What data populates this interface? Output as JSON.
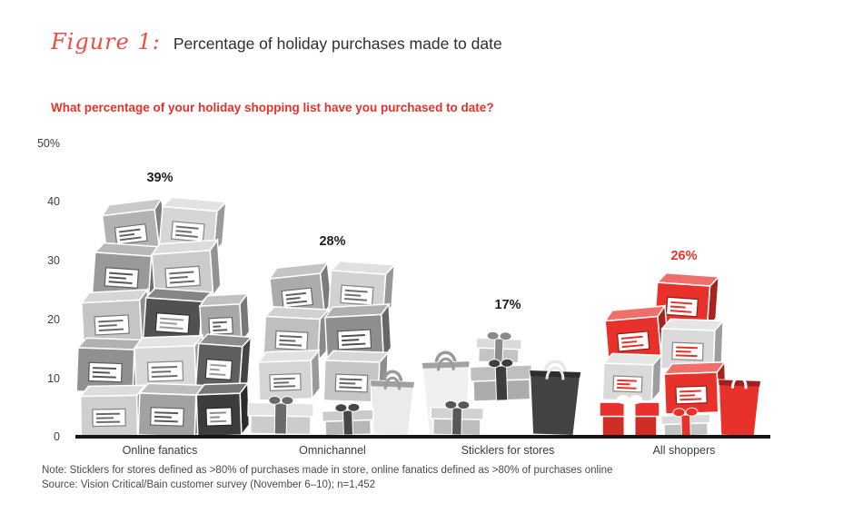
{
  "figure": {
    "label": "Figure 1:",
    "title": "Percentage of holiday purchases made to date",
    "question": "What percentage of your holiday shopping list have you purchased to date?"
  },
  "chart_data": {
    "type": "bar",
    "title": "Percentage of holiday purchases made to date",
    "categories": [
      "Online fanatics",
      "Omnichannel",
      "Sticklers for stores",
      "All shoppers"
    ],
    "values": [
      39,
      28,
      17,
      26
    ],
    "value_labels": [
      "39%",
      "28%",
      "17%",
      "26%"
    ],
    "unit": "%",
    "ylim": [
      0,
      50
    ],
    "y_axis_ticks": [
      "50%",
      "40",
      "30",
      "20",
      "10",
      "0"
    ],
    "grid": false,
    "legend": "none",
    "xlabel": "",
    "ylabel": "",
    "bar_style": "illustrated stacks of shipping boxes, gift boxes and shopping bags",
    "highlight": {
      "category": "All shoppers",
      "color": "#e8312a"
    }
  },
  "notes": {
    "note": "Note: Sticklers for stores defined as >80% of purchases made in store, online fanatics defined as >80% of purchases online",
    "source": "Source: Vision Critical/Bain customer survey (November 6–10); n=1,452"
  },
  "colors": {
    "accent_red": "#e8312a",
    "text_dark": "#2e2e33",
    "axis_black": "#161616",
    "box_grays": [
      "#d6d6d6",
      "#c5c5c5",
      "#a2a2a2",
      "#8e8e8e",
      "#5e5e5e",
      "#3c3c3c"
    ]
  }
}
